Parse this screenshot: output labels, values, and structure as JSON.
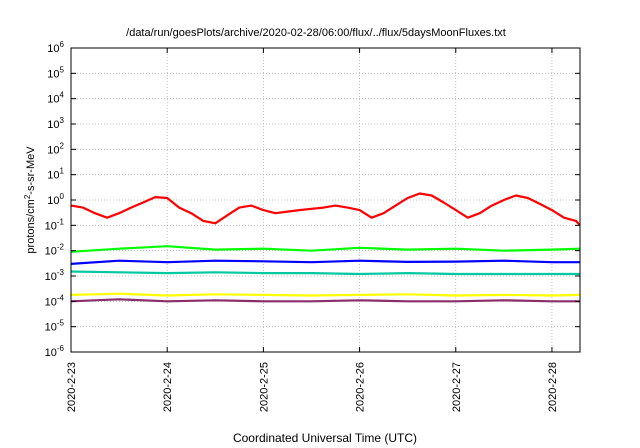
{
  "chart_data": {
    "type": "line",
    "title": "/data/run/goesPlots/archive/2020-02-28/06:00/flux/../flux/5daysMoonFluxes.txt",
    "xlabel": "Coordinated Universal Time (UTC)",
    "ylabel": "protons/cm²-s-sr-MeV",
    "ylabel_parts": {
      "base": "protons/cm",
      "sup": "2",
      "rest": "-s-sr-MeV"
    },
    "y_scale": "log",
    "ylim": [
      1e-06,
      1000000.0
    ],
    "xlim": [
      "2020-02-23T00:00",
      "2020-02-28T07:00"
    ],
    "grid": true,
    "legend": "none",
    "x_ticks": [
      "2020-2-23",
      "2020-2-24",
      "2020-2-25",
      "2020-2-26",
      "2020-2-27",
      "2020-2-28"
    ],
    "y_ticks": [
      {
        "base": "10",
        "exp": "-6"
      },
      {
        "base": "10",
        "exp": "-5"
      },
      {
        "base": "10",
        "exp": "-4"
      },
      {
        "base": "10",
        "exp": "-3"
      },
      {
        "base": "10",
        "exp": "-2"
      },
      {
        "base": "10",
        "exp": "-1"
      },
      {
        "base": "10",
        "exp": "0"
      },
      {
        "base": "10",
        "exp": "1"
      },
      {
        "base": "10",
        "exp": "2"
      },
      {
        "base": "10",
        "exp": "3"
      },
      {
        "base": "10",
        "exp": "4"
      },
      {
        "base": "10",
        "exp": "5"
      },
      {
        "base": "10",
        "exp": "6"
      }
    ],
    "series": [
      {
        "color": "#ff0000",
        "x": [
          "2020-02-23T00:00",
          "2020-02-23T03:00",
          "2020-02-23T06:00",
          "2020-02-23T09:00",
          "2020-02-23T12:00",
          "2020-02-23T15:00",
          "2020-02-23T18:00",
          "2020-02-23T21:00",
          "2020-02-24T00:00",
          "2020-02-24T03:00",
          "2020-02-24T06:00",
          "2020-02-24T09:00",
          "2020-02-24T12:00",
          "2020-02-24T15:00",
          "2020-02-24T18:00",
          "2020-02-24T21:00",
          "2020-02-25T00:00",
          "2020-02-25T03:00",
          "2020-02-25T06:00",
          "2020-02-25T09:00",
          "2020-02-25T12:00",
          "2020-02-25T15:00",
          "2020-02-25T18:00",
          "2020-02-25T21:00",
          "2020-02-26T00:00",
          "2020-02-26T03:00",
          "2020-02-26T06:00",
          "2020-02-26T09:00",
          "2020-02-26T12:00",
          "2020-02-26T15:00",
          "2020-02-26T18:00",
          "2020-02-26T21:00",
          "2020-02-27T00:00",
          "2020-02-27T03:00",
          "2020-02-27T06:00",
          "2020-02-27T09:00",
          "2020-02-27T12:00",
          "2020-02-27T15:00",
          "2020-02-27T18:00",
          "2020-02-27T21:00",
          "2020-02-28T00:00",
          "2020-02-28T03:00",
          "2020-02-28T06:00",
          "2020-02-28T07:00"
        ],
        "y": [
          0.6,
          0.5,
          0.3,
          0.2,
          0.3,
          0.5,
          0.8,
          1.3,
          1.2,
          0.5,
          0.3,
          0.15,
          0.12,
          0.25,
          0.5,
          0.6,
          0.4,
          0.3,
          0.35,
          0.4,
          0.45,
          0.5,
          0.6,
          0.5,
          0.4,
          0.2,
          0.3,
          0.6,
          1.2,
          1.8,
          1.5,
          0.8,
          0.4,
          0.2,
          0.3,
          0.6,
          1.0,
          1.5,
          1.2,
          0.7,
          0.4,
          0.2,
          0.15,
          0.1
        ]
      },
      {
        "color": "#00ff00",
        "x": [
          "2020-02-23T00:00",
          "2020-02-23T12:00",
          "2020-02-24T00:00",
          "2020-02-24T12:00",
          "2020-02-25T00:00",
          "2020-02-25T12:00",
          "2020-02-26T00:00",
          "2020-02-26T12:00",
          "2020-02-27T00:00",
          "2020-02-27T12:00",
          "2020-02-28T00:00",
          "2020-02-28T07:00"
        ],
        "y": [
          0.009,
          0.012,
          0.015,
          0.011,
          0.012,
          0.01,
          0.013,
          0.011,
          0.012,
          0.01,
          0.011,
          0.012
        ]
      },
      {
        "color": "#0000ff",
        "x": [
          "2020-02-23T00:00",
          "2020-02-23T12:00",
          "2020-02-24T00:00",
          "2020-02-24T12:00",
          "2020-02-25T00:00",
          "2020-02-25T12:00",
          "2020-02-26T00:00",
          "2020-02-26T12:00",
          "2020-02-27T00:00",
          "2020-02-27T12:00",
          "2020-02-28T00:00",
          "2020-02-28T07:00"
        ],
        "y": [
          0.003,
          0.004,
          0.0035,
          0.004,
          0.0038,
          0.0035,
          0.004,
          0.0036,
          0.0037,
          0.004,
          0.0035,
          0.0035
        ]
      },
      {
        "color": "#00c8a0",
        "x": [
          "2020-02-23T00:00",
          "2020-02-23T12:00",
          "2020-02-24T00:00",
          "2020-02-24T12:00",
          "2020-02-25T00:00",
          "2020-02-25T12:00",
          "2020-02-26T00:00",
          "2020-02-26T12:00",
          "2020-02-27T00:00",
          "2020-02-27T12:00",
          "2020-02-28T00:00",
          "2020-02-28T07:00"
        ],
        "y": [
          0.0015,
          0.0014,
          0.0013,
          0.0014,
          0.0013,
          0.0013,
          0.0012,
          0.0013,
          0.0012,
          0.0012,
          0.0012,
          0.0012
        ]
      },
      {
        "color": "#ffff00",
        "x": [
          "2020-02-23T00:00",
          "2020-02-23T12:00",
          "2020-02-24T00:00",
          "2020-02-24T12:00",
          "2020-02-25T00:00",
          "2020-02-25T12:00",
          "2020-02-26T00:00",
          "2020-02-26T12:00",
          "2020-02-27T00:00",
          "2020-02-27T12:00",
          "2020-02-28T00:00",
          "2020-02-28T07:00"
        ],
        "y": [
          0.00018,
          0.0002,
          0.00017,
          0.00019,
          0.00018,
          0.00017,
          0.00018,
          0.00019,
          0.00017,
          0.00018,
          0.00017,
          0.00018
        ]
      },
      {
        "color": "#8b2d6b",
        "x": [
          "2020-02-23T00:00",
          "2020-02-23T12:00",
          "2020-02-24T00:00",
          "2020-02-24T12:00",
          "2020-02-25T00:00",
          "2020-02-25T12:00",
          "2020-02-26T00:00",
          "2020-02-26T12:00",
          "2020-02-27T00:00",
          "2020-02-27T12:00",
          "2020-02-28T00:00",
          "2020-02-28T07:00"
        ],
        "y": [
          0.0001,
          0.00012,
          0.0001,
          0.00011,
          0.0001,
          0.0001,
          0.00011,
          0.0001,
          0.0001,
          0.00011,
          0.0001,
          0.0001
        ]
      }
    ]
  }
}
